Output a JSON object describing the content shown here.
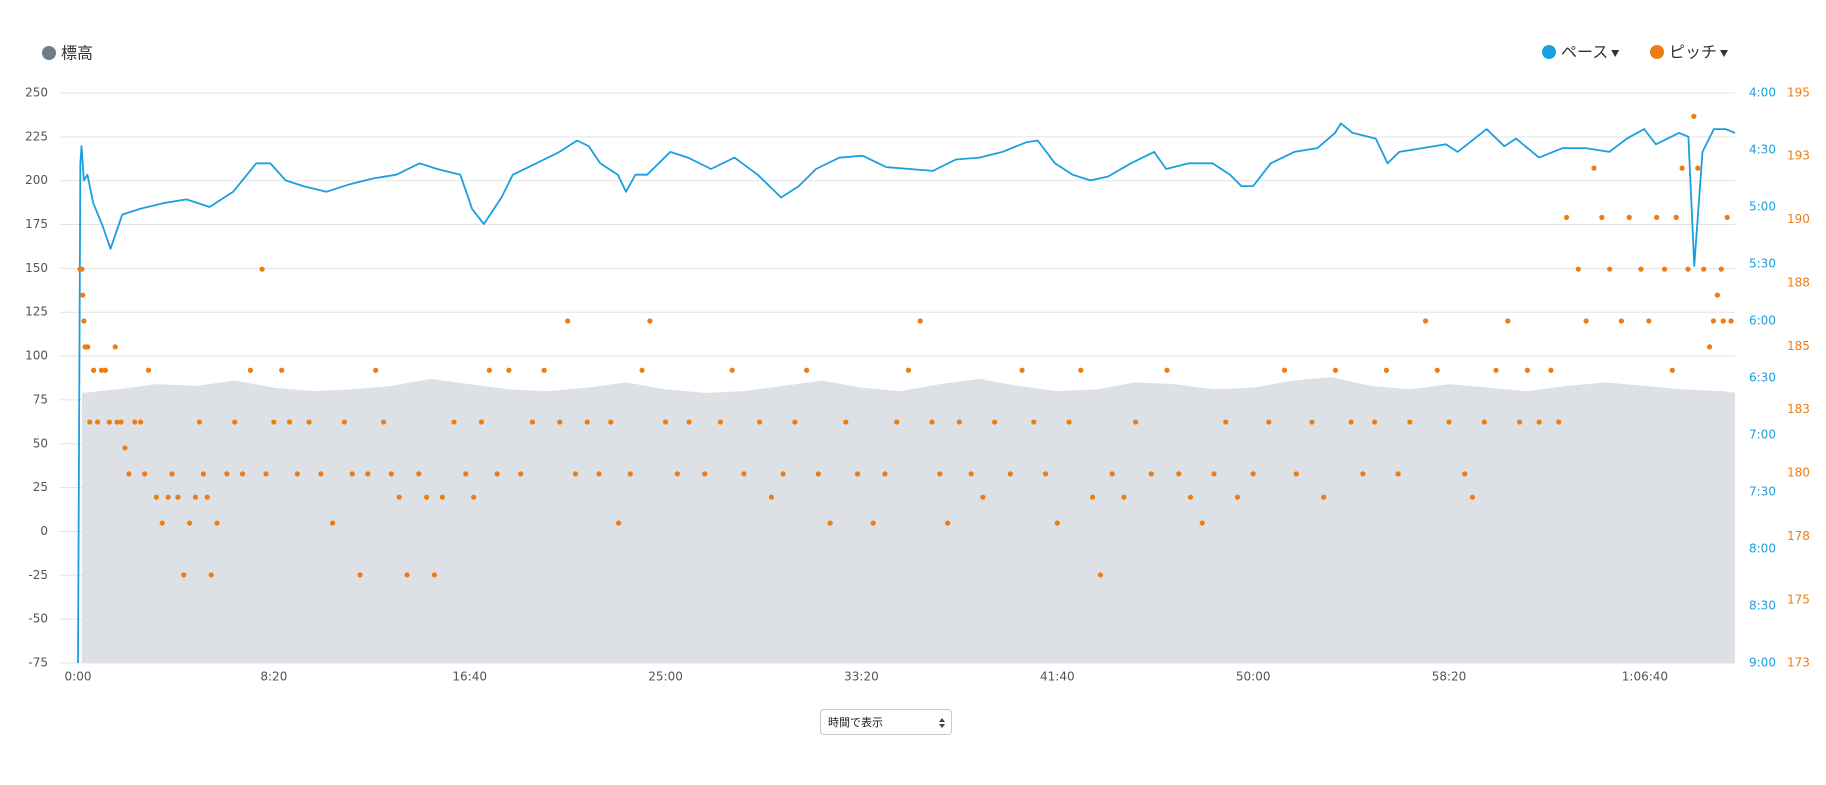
{
  "chart_data": {
    "type": "line",
    "grid": true,
    "xlim": [
      0,
      4230
    ],
    "xticks": [
      {
        "value": 0,
        "label": "0:00"
      },
      {
        "value": 500,
        "label": "8:20"
      },
      {
        "value": 1000,
        "label": "16:40"
      },
      {
        "value": 1500,
        "label": "25:00"
      },
      {
        "value": 2000,
        "label": "33:20"
      },
      {
        "value": 2500,
        "label": "41:40"
      },
      {
        "value": 3000,
        "label": "50:00"
      },
      {
        "value": 3500,
        "label": "58:20"
      },
      {
        "value": 4000,
        "label": "1:06:40"
      }
    ],
    "ylim": [
      -75,
      250
    ],
    "yticks": [
      -75,
      -50,
      -25,
      0,
      25,
      50,
      75,
      100,
      125,
      150,
      175,
      200,
      225,
      250
    ],
    "y2lim": [
      540,
      240
    ],
    "y2ticks": [
      {
        "value": 240,
        "label": "4:00"
      },
      {
        "value": 270,
        "label": "4:30"
      },
      {
        "value": 300,
        "label": "5:00"
      },
      {
        "value": 330,
        "label": "5:30"
      },
      {
        "value": 360,
        "label": "6:00"
      },
      {
        "value": 390,
        "label": "6:30"
      },
      {
        "value": 420,
        "label": "7:00"
      },
      {
        "value": 450,
        "label": "7:30"
      },
      {
        "value": 480,
        "label": "8:00"
      },
      {
        "value": 510,
        "label": "8:30"
      },
      {
        "value": 540,
        "label": "9:00"
      }
    ],
    "y3lim": [
      173,
      195
    ],
    "y3ticks": [
      173,
      {
        "value": 175.44,
        "label": "175"
      },
      {
        "value": 177.89,
        "label": "178"
      },
      {
        "value": 180.33,
        "label": "180"
      },
      {
        "value": 182.78,
        "label": "183"
      },
      {
        "value": 185.22,
        "label": "185"
      },
      {
        "value": 187.67,
        "label": "188"
      },
      {
        "value": 190.11,
        "label": "190"
      },
      {
        "value": 192.56,
        "label": "193"
      },
      195
    ],
    "series": [
      {
        "name": "標高",
        "type": "area",
        "axis": "y",
        "color": "#dde1e6",
        "legend_color": "#6f7c8a",
        "x": [
          10,
          100,
          200,
          300,
          400,
          500,
          600,
          700,
          800,
          900,
          1000,
          1100,
          1200,
          1300,
          1400,
          1500,
          1600,
          1700,
          1800,
          1900,
          2000,
          2100,
          2200,
          2300,
          2400,
          2500,
          2600,
          2700,
          2800,
          2900,
          3000,
          3100,
          3200,
          3300,
          3400,
          3500,
          3600,
          3700,
          3800,
          3900,
          4000,
          4100,
          4200,
          4230
        ],
        "values": [
          79,
          81,
          84,
          83,
          86,
          82,
          80,
          81,
          83,
          87,
          84,
          81,
          80,
          82,
          85,
          81,
          79,
          80,
          83,
          86,
          82,
          80,
          84,
          87,
          83,
          80,
          81,
          85,
          84,
          81,
          82,
          86,
          88,
          83,
          81,
          84,
          82,
          80,
          83,
          85,
          83,
          81,
          80,
          79
        ]
      },
      {
        "name": "ペース",
        "type": "line",
        "axis": "y2",
        "color": "#1a9fe0",
        "x": [
          0,
          6,
          9,
          15,
          24,
          39,
          63,
          83,
          113,
          158,
          217,
          277,
          336,
          396,
          455,
          491,
          530,
          575,
          634,
          694,
          753,
          813,
          872,
          917,
          976,
          1006,
          1036,
          1081,
          1110,
          1170,
          1229,
          1274,
          1304,
          1333,
          1378,
          1399,
          1423,
          1453,
          1512,
          1557,
          1616,
          1676,
          1735,
          1795,
          1840,
          1884,
          1944,
          2003,
          2063,
          2123,
          2182,
          2241,
          2301,
          2360,
          2420,
          2450,
          2494,
          2539,
          2584,
          2629,
          2688,
          2747,
          2778,
          2836,
          2896,
          2941,
          2970,
          3000,
          3045,
          3105,
          3164,
          3209,
          3224,
          3254,
          3313,
          3343,
          3373,
          3432,
          3492,
          3522,
          3596,
          3641,
          3671,
          3730,
          3790,
          3849,
          3909,
          3954,
          3998,
          4028,
          4087,
          4111,
          4126,
          4147,
          4176,
          4206,
          4230
        ],
        "values": [
          540,
          277,
          268,
          286,
          283,
          298,
          310,
          322,
          304,
          301,
          298,
          296,
          300,
          292,
          277,
          277,
          286,
          289,
          292,
          288,
          285,
          283,
          277,
          280,
          283,
          301,
          309,
          295,
          283,
          277,
          271,
          265,
          268,
          277,
          283,
          292,
          283,
          283,
          271,
          274,
          280,
          274,
          283,
          295,
          289,
          280,
          274,
          273,
          279,
          280,
          281,
          275,
          274,
          271,
          266,
          265,
          277,
          283,
          286,
          284,
          277,
          271,
          280,
          277,
          277,
          283,
          289,
          289,
          277,
          271,
          269,
          261,
          256,
          261,
          264,
          277,
          271,
          269,
          267,
          271,
          259,
          268,
          264,
          274,
          269,
          269,
          271,
          264,
          259,
          267,
          261,
          263,
          331,
          271,
          259,
          259,
          261
        ]
      },
      {
        "name": "ピッチ",
        "type": "scatter",
        "axis": "y3",
        "color": "#ee7c14",
        "x": [
          5,
          10,
          12,
          15,
          18,
          25,
          30,
          40,
          50,
          60,
          70,
          80,
          95,
          100,
          110,
          120,
          130,
          145,
          160,
          170,
          180,
          200,
          215,
          230,
          240,
          255,
          270,
          285,
          300,
          310,
          320,
          330,
          340,
          355,
          380,
          400,
          420,
          440,
          470,
          480,
          500,
          520,
          540,
          560,
          590,
          620,
          650,
          680,
          700,
          720,
          740,
          760,
          780,
          800,
          820,
          840,
          870,
          890,
          910,
          930,
          960,
          990,
          1010,
          1030,
          1050,
          1070,
          1100,
          1130,
          1160,
          1190,
          1230,
          1250,
          1270,
          1300,
          1330,
          1360,
          1380,
          1410,
          1440,
          1460,
          1500,
          1530,
          1560,
          1600,
          1640,
          1670,
          1700,
          1740,
          1770,
          1800,
          1830,
          1860,
          1890,
          1920,
          1960,
          1990,
          2030,
          2060,
          2090,
          2120,
          2150,
          2180,
          2200,
          2220,
          2250,
          2280,
          2310,
          2340,
          2380,
          2410,
          2440,
          2470,
          2500,
          2530,
          2560,
          2590,
          2610,
          2640,
          2670,
          2700,
          2740,
          2780,
          2810,
          2840,
          2870,
          2900,
          2930,
          2960,
          3000,
          3040,
          3080,
          3110,
          3150,
          3180,
          3210,
          3250,
          3280,
          3310,
          3340,
          3370,
          3400,
          3440,
          3470,
          3500,
          3540,
          3560,
          3590,
          3620,
          3650,
          3680,
          3700,
          3730,
          3760,
          3780,
          3800,
          3830,
          3850,
          3870,
          3890,
          3910,
          3940,
          3960,
          3990,
          4010,
          4030,
          4050,
          4070,
          4080,
          4095,
          4110,
          4125,
          4135,
          4150,
          4165,
          4175,
          4185,
          4195,
          4200,
          4210,
          4220
        ],
        "values": [
          188.2,
          188.2,
          187.2,
          186.2,
          185.2,
          185.2,
          182.3,
          184.3,
          182.3,
          184.3,
          184.3,
          182.3,
          185.2,
          182.3,
          182.3,
          181.3,
          180.3,
          182.3,
          182.3,
          180.3,
          184.3,
          179.4,
          178.4,
          179.4,
          180.3,
          179.4,
          176.4,
          178.4,
          179.4,
          182.3,
          180.3,
          179.4,
          176.4,
          178.4,
          180.3,
          182.3,
          180.3,
          184.3,
          188.2,
          180.3,
          182.3,
          184.3,
          182.3,
          180.3,
          182.3,
          180.3,
          178.4,
          182.3,
          180.3,
          176.4,
          180.3,
          184.3,
          182.3,
          180.3,
          179.4,
          176.4,
          180.3,
          179.4,
          176.4,
          179.4,
          182.3,
          180.3,
          179.4,
          182.3,
          184.3,
          180.3,
          184.3,
          180.3,
          182.3,
          184.3,
          182.3,
          186.2,
          180.3,
          182.3,
          180.3,
          182.3,
          178.4,
          180.3,
          184.3,
          186.2,
          182.3,
          180.3,
          182.3,
          180.3,
          182.3,
          184.3,
          180.3,
          182.3,
          179.4,
          180.3,
          182.3,
          184.3,
          180.3,
          178.4,
          182.3,
          180.3,
          178.4,
          180.3,
          182.3,
          184.3,
          186.2,
          182.3,
          180.3,
          178.4,
          182.3,
          180.3,
          179.4,
          182.3,
          180.3,
          184.3,
          182.3,
          180.3,
          178.4,
          182.3,
          184.3,
          179.4,
          176.4,
          180.3,
          179.4,
          182.3,
          180.3,
          184.3,
          180.3,
          179.4,
          178.4,
          180.3,
          182.3,
          179.4,
          180.3,
          182.3,
          184.3,
          180.3,
          182.3,
          179.4,
          184.3,
          182.3,
          180.3,
          182.3,
          184.3,
          180.3,
          182.3,
          186.2,
          184.3,
          182.3,
          180.3,
          179.4,
          182.3,
          184.3,
          186.2,
          182.3,
          184.3,
          182.3,
          184.3,
          182.3,
          190.2,
          188.2,
          186.2,
          192.1,
          190.2,
          188.2,
          186.2,
          190.2,
          188.2,
          186.2,
          190.2,
          188.2,
          184.3,
          190.2,
          192.1,
          188.2,
          194.1,
          192.1,
          188.2,
          185.2,
          186.2,
          187.2,
          188.2,
          186.2,
          190.2,
          186.2
        ]
      }
    ],
    "display_select": "時間で表示"
  }
}
